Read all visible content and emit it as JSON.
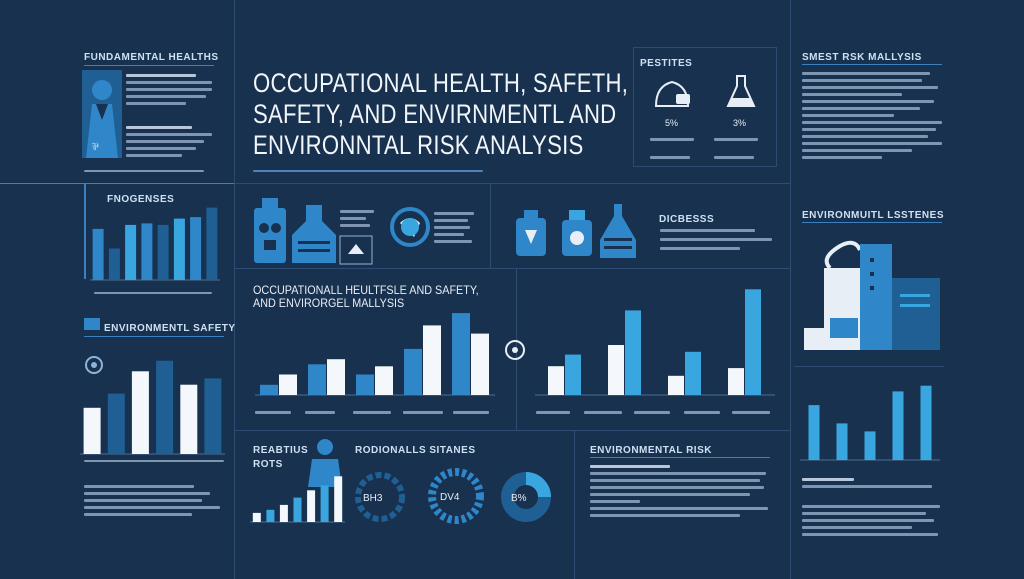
{
  "title_lines": [
    "OCCUPATIONAL HEALTH, SAFETH,",
    "SAFETY, AND ENVIRNMENTL AND",
    "ENVIRONNTAL RISK ANALYSIS"
  ],
  "headers": {
    "fundamental": "FUNDAMENTAL HEALTHS",
    "fnogenses": "FNOGENSES",
    "env_safety": "ENVIRONMENTL SAFETY",
    "pestites": "PESTITES",
    "dicbesss": "DICBESSS",
    "ohs_line1": "OCCUPATIONALL HEULTFSLE AND SAFETY,",
    "ohs_line2": "AND ENVIRORGEL MALLYSIS",
    "reabtius": "REABTIUS",
    "rots": "ROTS",
    "rodionals": "RODIONALLS SITANES",
    "env_risk": "ENVIRONMENTAL RISK",
    "smest_risk": "SMEST RSK MALLYSIS",
    "env_systems": "ENVIRONMUITL LSSTENES"
  },
  "pestites_values": [
    "5%",
    "3%"
  ],
  "gauge_labels": [
    "BH3",
    "DV4",
    "B%"
  ],
  "icons": {
    "worker": "worker-icon",
    "gas_mask": "gas-mask-icon",
    "factory": "factory-icon",
    "map": "map-icon",
    "globe": "globe-recycle-icon",
    "hazard": "hazard-canister-icon",
    "flask": "flask-icon",
    "city": "industrial-city-icon"
  },
  "colors": {
    "background": "#17314f",
    "accent_blue": "#2f86c8",
    "bright_blue": "#3aa6e0",
    "white_bar": "#f4f7fb",
    "dark_bar": "#1f5f94"
  },
  "chart_data": [
    {
      "type": "bar",
      "series": [
        {
          "values": [
            65,
            40,
            70,
            72,
            70,
            78,
            80,
            92
          ]
        }
      ]
    },
    {
      "type": "bar",
      "series": [
        {
          "values": [
            52,
            68,
            93,
            105,
            78,
            85
          ]
        }
      ]
    },
    {
      "type": "bar",
      "series": [
        {
          "values": [
            10,
            30,
            20,
            45,
            80
          ]
        },
        {
          "values": [
            20,
            35,
            28,
            68,
            60
          ]
        }
      ]
    },
    {
      "type": "bar",
      "series": [
        {
          "values": [
            30,
            52,
            20,
            28
          ]
        },
        {
          "values": [
            42,
            88,
            45,
            110
          ]
        }
      ]
    },
    {
      "type": "bar",
      "series": [
        {
          "values": [
            15,
            20,
            28,
            40,
            52,
            60,
            75
          ]
        }
      ]
    },
    {
      "type": "bar",
      "series": [
        {
          "values": [
            48,
            32,
            25,
            60,
            65
          ]
        }
      ]
    }
  ]
}
